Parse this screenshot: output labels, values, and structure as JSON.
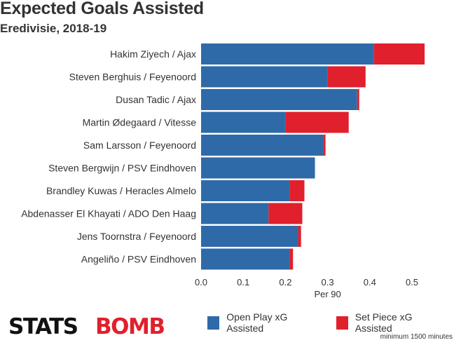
{
  "chart_data": {
    "type": "bar",
    "orientation": "horizontal",
    "stacked": true,
    "title": "Expected Goals Assisted",
    "subtitle": "Eredivisie, 2018-19",
    "xlabel": "Per 90",
    "xlim": [
      0,
      0.55
    ],
    "xticks": [
      "0.0",
      "0.1",
      "0.2",
      "0.3",
      "0.4",
      "0.5"
    ],
    "grid": false,
    "legend_position": "bottom",
    "categories": [
      "Hakim Ziyech / Ajax",
      "Steven Berghuis / Feyenoord",
      "Dusan Tadic / Ajax",
      "Martin Ødegaard / Vitesse",
      "Sam Larsson / Feyenoord",
      "Steven Bergwijn / PSV Eindhoven",
      "Brandley Kuwas / Heracles Almelo",
      "Abdenasser El Khayati / ADO Den Haag",
      "Jens Toornstra / Feyenoord",
      "Angeliño / PSV Eindhoven"
    ],
    "series": [
      {
        "name": "Open Play xG Assisted",
        "color": "#2f6aa8",
        "values": [
          0.41,
          0.3,
          0.37,
          0.2,
          0.29,
          0.27,
          0.21,
          0.16,
          0.23,
          0.21
        ]
      },
      {
        "name": "Set Piece xG Assisted",
        "color": "#e0202c",
        "values": [
          0.12,
          0.09,
          0.005,
          0.15,
          0.005,
          0.0,
          0.035,
          0.08,
          0.007,
          0.008
        ]
      }
    ],
    "footnote": "minimum 1500 minutes"
  },
  "branding": {
    "logo_part1": "STATS",
    "logo_part2": "BOMB",
    "logo_color1": "#111111",
    "logo_color2": "#e0202c"
  }
}
